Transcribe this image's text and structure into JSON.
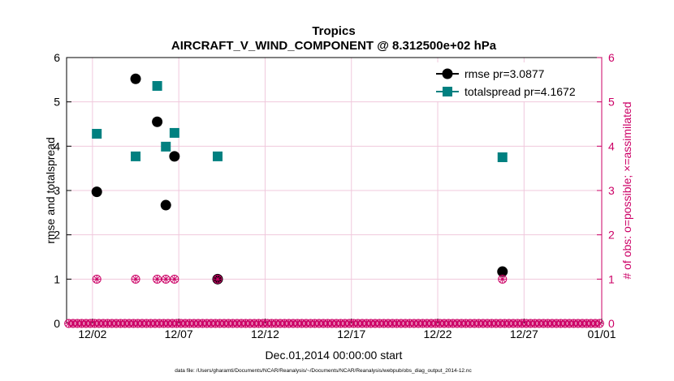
{
  "chart_data": {
    "type": "scatter",
    "title": "Tropics",
    "subtitle": "AIRCRAFT_V_WIND_COMPONENT @ 8.312500e+02 hPa",
    "xlabel": "Dec.01,2014 00:00:00 start",
    "ylabel": "rmse and totalspread",
    "y2label": "# of obs: o=possible; ×=assimilated",
    "footer": "data file: /Users/gharamti/Documents/NCAR/Reanalysis/~/Documents/NCAR/Reanalysis/webpub/obs_diag_output_2014-12.nc",
    "xlim": [
      1.0,
      32.0
    ],
    "ylim": [
      0,
      6
    ],
    "y2lim": [
      0,
      6
    ],
    "xticks": [
      {
        "value": 2.5,
        "label": "12/02"
      },
      {
        "value": 7.5,
        "label": "12/07"
      },
      {
        "value": 12.5,
        "label": "12/12"
      },
      {
        "value": 17.5,
        "label": "12/17"
      },
      {
        "value": 22.5,
        "label": "12/22"
      },
      {
        "value": 27.5,
        "label": "12/27"
      },
      {
        "value": 32.0,
        "label": "01/01"
      }
    ],
    "yticks": [
      "0",
      "1",
      "2",
      "3",
      "4",
      "5",
      "6"
    ],
    "y2ticks": [
      "0",
      "1",
      "2",
      "3",
      "4",
      "5",
      "6"
    ],
    "legend_position": "top-right",
    "series": [
      {
        "name": "rmse pr=3.0877",
        "color": "#000000",
        "marker": "circle",
        "x": [
          2.75,
          5.0,
          6.25,
          6.75,
          7.25,
          9.75,
          26.25
        ],
        "values": [
          2.97,
          5.52,
          4.55,
          2.67,
          3.77,
          1.0,
          1.17
        ]
      },
      {
        "name": "totalspread pr=4.1672",
        "color": "#008080",
        "marker": "square",
        "x": [
          2.75,
          5.0,
          6.25,
          6.75,
          7.25,
          9.75,
          26.25
        ],
        "values": [
          4.28,
          3.77,
          5.36,
          3.99,
          4.3,
          3.77,
          3.75
        ]
      }
    ],
    "obs_possible": {
      "color": "#cc0066",
      "x": [
        2.75,
        5.0,
        6.25,
        6.75,
        7.25,
        9.75,
        26.25
      ],
      "values": [
        1,
        1,
        1,
        1,
        1,
        1,
        1
      ]
    },
    "obs_zero_start": 1.125,
    "obs_zero_step": 0.25
  }
}
